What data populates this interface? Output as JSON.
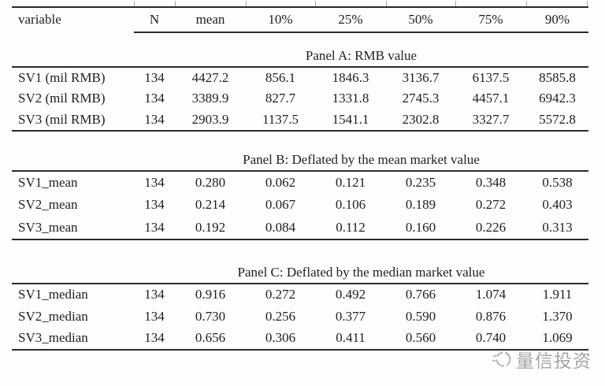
{
  "header": {
    "columns": [
      "variable",
      "N",
      "mean",
      "10%",
      "25%",
      "50%",
      "75%",
      "90%"
    ]
  },
  "panels": [
    {
      "title": "Panel A: RMB value",
      "rows": [
        {
          "label": "SV1 (mil RMB)",
          "values": [
            "134",
            "4427.2",
            "856.1",
            "1846.3",
            "3136.7",
            "6137.5",
            "8585.8"
          ]
        },
        {
          "label": "SV2 (mil RMB)",
          "values": [
            "134",
            "3389.9",
            "827.7",
            "1331.8",
            "2745.3",
            "4457.1",
            "6942.3"
          ]
        },
        {
          "label": "SV3 (mil RMB)",
          "values": [
            "134",
            "2903.9",
            "1137.5",
            "1541.1",
            "2302.8",
            "3327.7",
            "5572.8"
          ]
        }
      ]
    },
    {
      "title": "Panel B: Deflated by the mean market value",
      "rows": [
        {
          "label": "SV1_mean",
          "values": [
            "134",
            "0.280",
            "0.062",
            "0.121",
            "0.235",
            "0.348",
            "0.538"
          ]
        },
        {
          "label": "SV2_mean",
          "values": [
            "134",
            "0.214",
            "0.067",
            "0.106",
            "0.189",
            "0.272",
            "0.403"
          ]
        },
        {
          "label": "SV3_mean",
          "values": [
            "134",
            "0.192",
            "0.084",
            "0.112",
            "0.160",
            "0.226",
            "0.313"
          ]
        }
      ]
    },
    {
      "title": "Panel C: Deflated by the median market value",
      "rows": [
        {
          "label": "SV1_median",
          "values": [
            "134",
            "0.916",
            "0.272",
            "0.492",
            "0.766",
            "1.074",
            "1.911"
          ]
        },
        {
          "label": "SV2_median",
          "values": [
            "134",
            "0.730",
            "0.256",
            "0.377",
            "0.590",
            "0.876",
            "1.370"
          ]
        },
        {
          "label": "SV3_median",
          "values": [
            "134",
            "0.656",
            "0.306",
            "0.411",
            "0.560",
            "0.740",
            "1.069"
          ]
        }
      ]
    }
  ],
  "watermark": {
    "text": "量信投资"
  },
  "colors": {
    "text": "#1e1e1e",
    "rule": "#2b2b2b",
    "watermark": "#a6a6a6"
  }
}
